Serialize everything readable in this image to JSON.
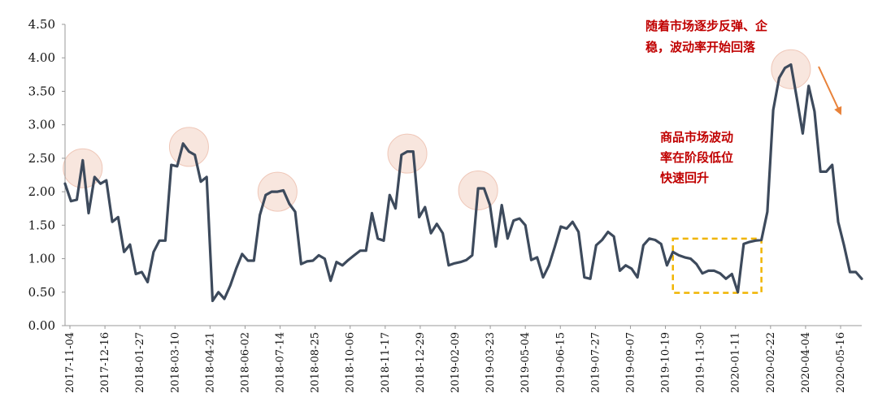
{
  "chart_data": {
    "type": "line",
    "title": "",
    "xlabel": "",
    "ylabel": "",
    "ylim": [
      0,
      4.5
    ],
    "yticks": [
      "0.00",
      "0.50",
      "1.00",
      "1.50",
      "2.00",
      "2.50",
      "3.00",
      "3.50",
      "4.00",
      "4.50"
    ],
    "xticks": [
      "2017-11-04",
      "2017-12-16",
      "2018-01-27",
      "2018-03-10",
      "2018-04-21",
      "2018-06-02",
      "2018-07-14",
      "2018-08-25",
      "2018-10-06",
      "2018-11-17",
      "2018-12-29",
      "2019-02-09",
      "2019-03-23",
      "2019-05-04",
      "2019-06-15",
      "2019-07-27",
      "2019-09-07",
      "2019-10-19",
      "2019-11-30",
      "2020-01-11",
      "2020-02-22",
      "2020-04-04",
      "2020-05-16"
    ],
    "grid": false,
    "series": [
      {
        "color": "#3d4a5c",
        "values": [
          2.12,
          1.86,
          1.88,
          2.47,
          1.68,
          2.22,
          2.12,
          2.17,
          1.55,
          1.62,
          1.1,
          1.21,
          0.77,
          0.8,
          0.65,
          1.1,
          1.27,
          1.27,
          2.4,
          2.38,
          2.72,
          2.6,
          2.55,
          2.15,
          2.22,
          0.37,
          0.5,
          0.4,
          0.6,
          0.85,
          1.07,
          0.97,
          0.97,
          1.65,
          1.95,
          2.0,
          2.0,
          2.02,
          1.82,
          1.7,
          0.92,
          0.96,
          0.97,
          1.05,
          1.0,
          0.67,
          0.95,
          0.9,
          0.98,
          1.05,
          1.12,
          1.12,
          1.68,
          1.3,
          1.27,
          1.95,
          1.75,
          2.55,
          2.6,
          2.6,
          1.62,
          1.77,
          1.38,
          1.52,
          1.38,
          0.9,
          0.93,
          0.95,
          0.98,
          1.05,
          2.05,
          2.05,
          1.8,
          1.18,
          1.8,
          1.3,
          1.57,
          1.6,
          1.5,
          0.98,
          1.02,
          0.72,
          0.9,
          1.18,
          1.48,
          1.45,
          1.55,
          1.4,
          0.72,
          0.7,
          1.2,
          1.28,
          1.4,
          1.33,
          0.82,
          0.9,
          0.85,
          0.72,
          1.2,
          1.3,
          1.28,
          1.22,
          0.9,
          1.1,
          1.05,
          1.02,
          1.0,
          0.92,
          0.78,
          0.82,
          0.82,
          0.78,
          0.7,
          0.77,
          0.5,
          1.22,
          1.25,
          1.27,
          1.28,
          1.7,
          3.22,
          3.7,
          3.85,
          3.9,
          3.4,
          2.87,
          3.58,
          3.2,
          2.3,
          2.3,
          2.4,
          1.55,
          1.2,
          0.8,
          0.8,
          0.7
        ]
      }
    ],
    "annotations": [
      {
        "lines": [
          "随着市场逐步反弹、企",
          "稳，波动率开始回落"
        ]
      },
      {
        "lines": [
          "商品市场波动",
          "率在阶段低位",
          "快速回升"
        ]
      }
    ],
    "highlight_circles": [
      {
        "index": 3,
        "value": 2.35
      },
      {
        "index": 21,
        "value": 2.67
      },
      {
        "index": 36,
        "value": 2.0
      },
      {
        "index": 58,
        "value": 2.57
      },
      {
        "index": 70,
        "value": 2.02
      },
      {
        "index": 123,
        "value": 3.83
      }
    ],
    "highlight_box": {
      "from_index": 103,
      "to_index": 118,
      "ymin": 0.49,
      "ymax": 1.3
    },
    "colors": {
      "line": "#3d4a5c",
      "annotation": "#c00000",
      "circle": "#f6ddd3",
      "box": "#f0b400",
      "arrow": "#e8823a"
    }
  }
}
